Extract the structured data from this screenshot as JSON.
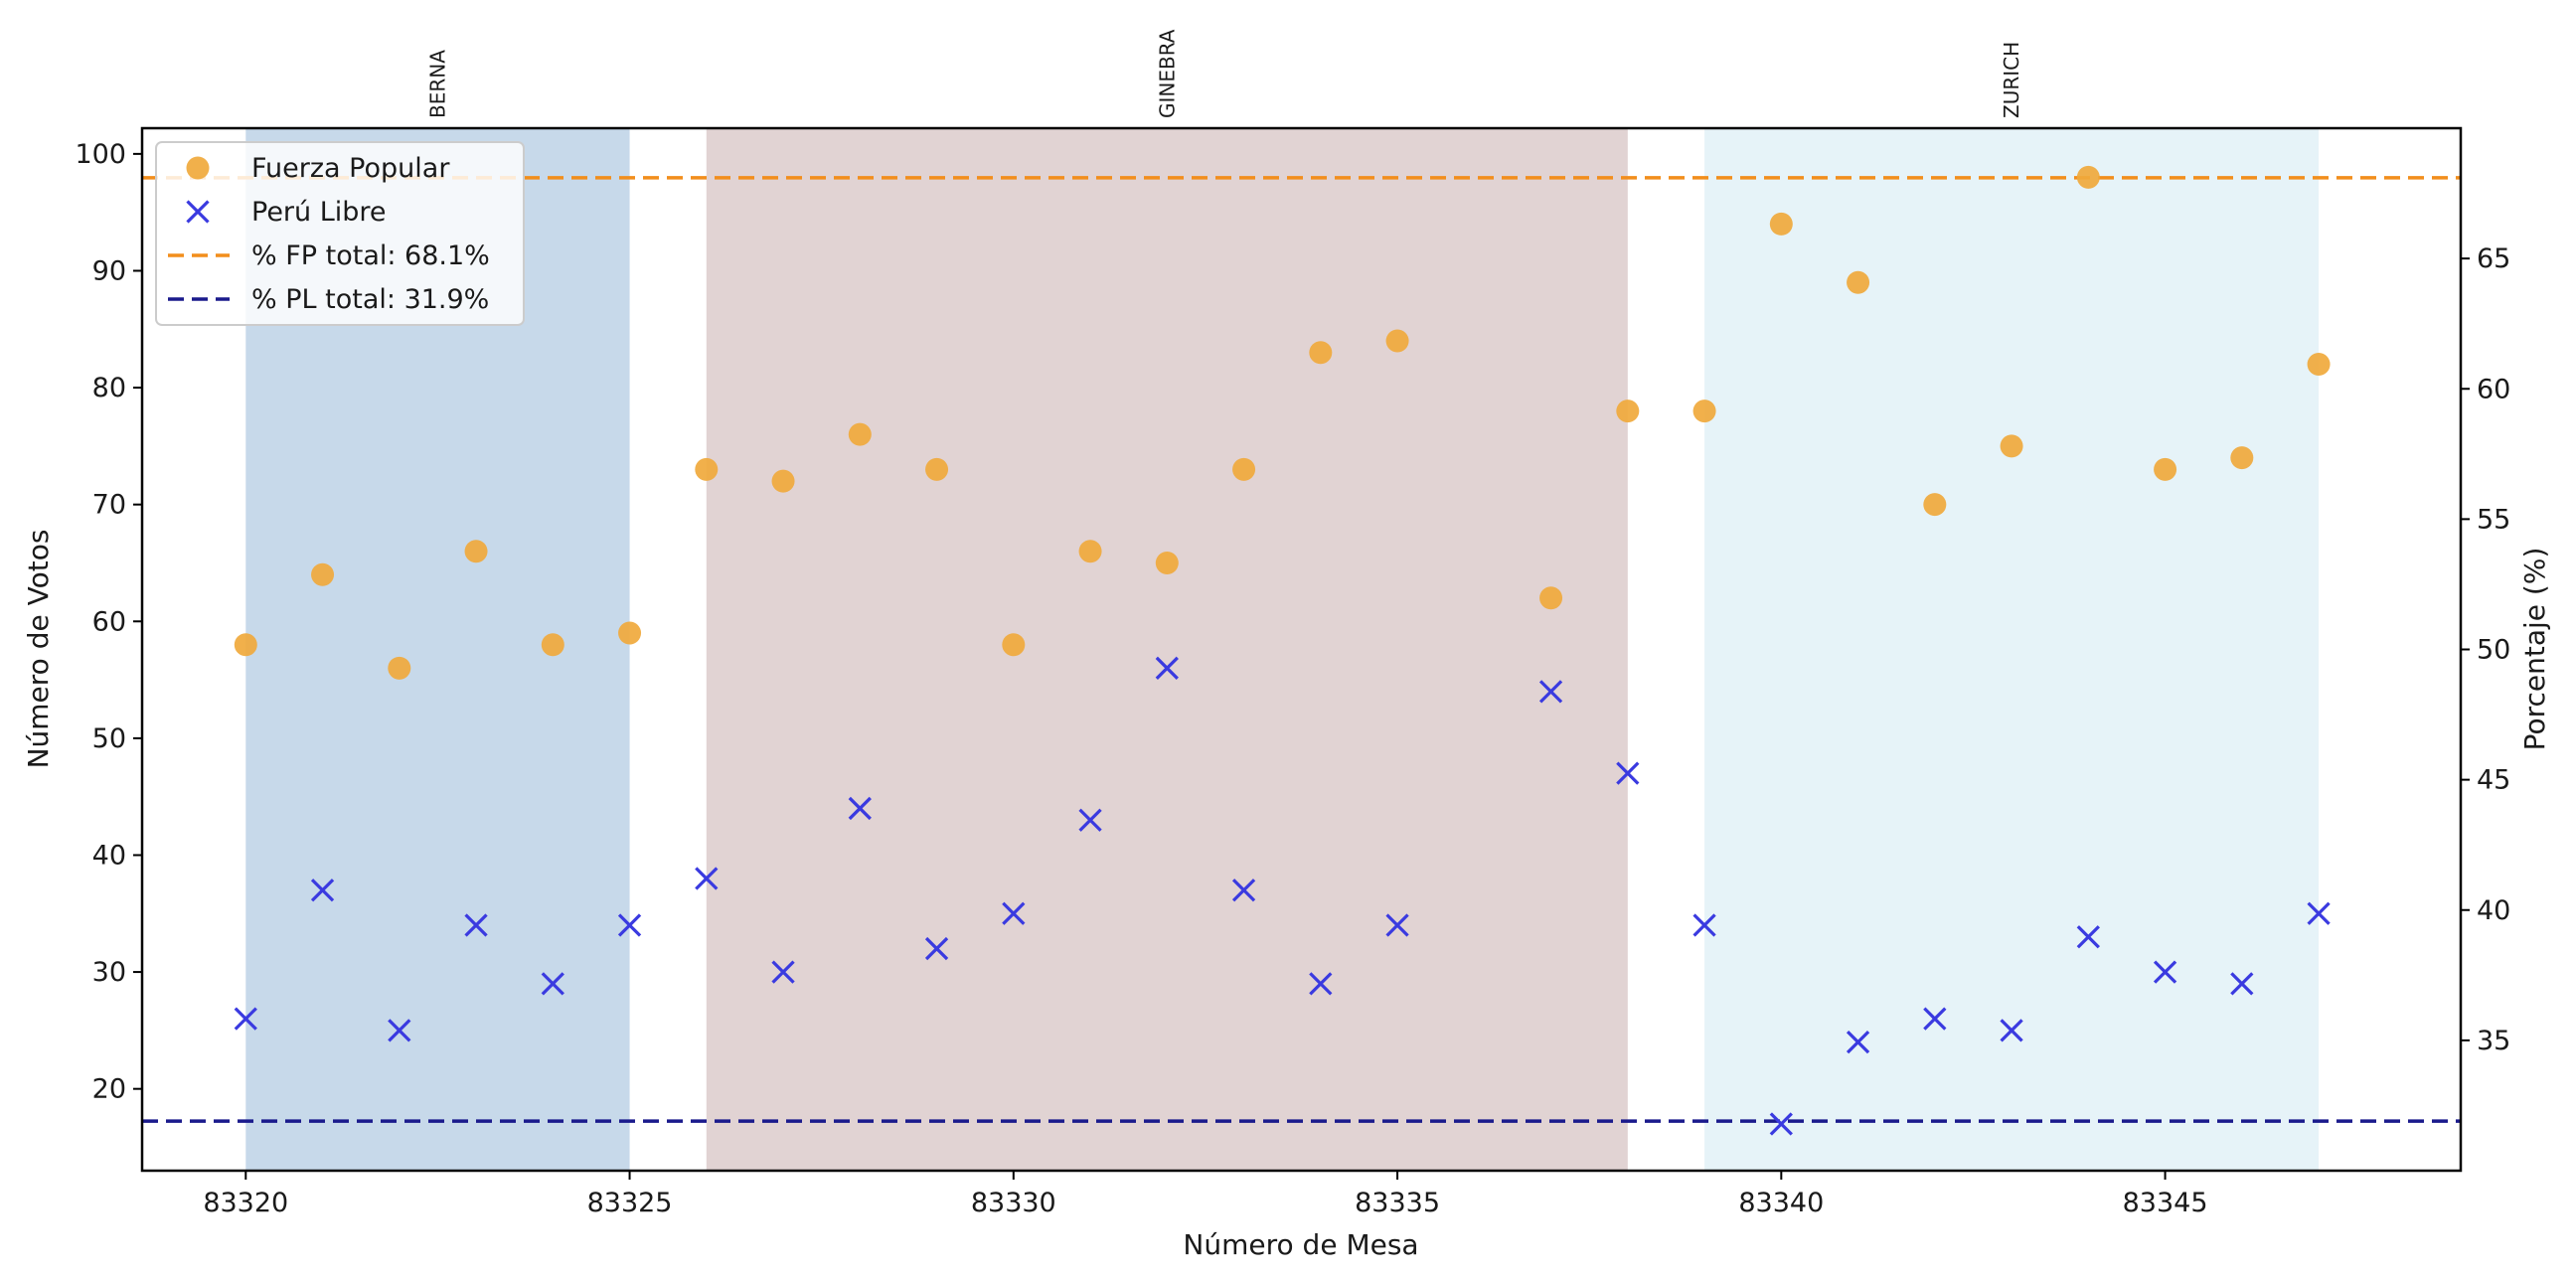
{
  "chart_data": {
    "type": "scatter",
    "xlabel": "Número de Mesa",
    "ylabel": "Número de Votos",
    "ylabel_right": "Porcentaje (%)",
    "xlim": [
      83318.65,
      83348.85
    ],
    "ylim": [
      13.0,
      102.2
    ],
    "ylim_right": [
      30.0,
      70.0
    ],
    "x_ticks": [
      83320,
      83325,
      83330,
      83335,
      83340,
      83345
    ],
    "y_ticks": [
      20,
      30,
      40,
      50,
      60,
      70,
      80,
      90,
      100
    ],
    "y_ticks_right": [
      35,
      40,
      45,
      50,
      55,
      60,
      65
    ],
    "regions": [
      {
        "label": "BERNA",
        "start": 83320,
        "end": 83325,
        "color": "#c7d9ea"
      },
      {
        "label": "GINEBRA",
        "start": 83326,
        "end": 83338,
        "color": "#e1d3d3"
      },
      {
        "label": "ZURICH",
        "start": 83339,
        "end": 83347,
        "color": "#e6f3f8"
      }
    ],
    "x": [
      83320,
      83321,
      83322,
      83323,
      83324,
      83325,
      83326,
      83327,
      83328,
      83329,
      83330,
      83331,
      83332,
      83333,
      83334,
      83335,
      83337,
      83338,
      83339,
      83340,
      83341,
      83342,
      83343,
      83344,
      83345,
      83346,
      83347
    ],
    "series": [
      {
        "name": "Fuerza Popular",
        "marker": "circle",
        "color": "#f0a93c",
        "values": [
          58,
          64,
          56,
          66,
          58,
          59,
          73,
          72,
          76,
          73,
          58,
          66,
          65,
          73,
          83,
          84,
          62,
          78,
          78,
          94,
          89,
          70,
          75,
          98,
          73,
          74,
          82
        ]
      },
      {
        "name": "Perú Libre",
        "marker": "x",
        "color": "#3a3ae0",
        "values": [
          26,
          37,
          25,
          34,
          29,
          34,
          38,
          30,
          44,
          32,
          35,
          43,
          56,
          37,
          29,
          34,
          54,
          47,
          34,
          17,
          24,
          26,
          25,
          33,
          30,
          29,
          35
        ]
      }
    ],
    "reference_lines": [
      {
        "name": "% FP total: 68.1%",
        "value": 68.1,
        "axis": "right",
        "style": "dashed",
        "color": "#f28e1c"
      },
      {
        "name": "% PL total: 31.9%",
        "value": 31.9,
        "axis": "right",
        "style": "dashed",
        "color": "#1a1a8c"
      }
    ],
    "legend": {
      "placement": "upper-left",
      "entries": [
        "Fuerza Popular",
        "Perú Libre",
        "% FP total: 68.1%",
        "% PL total: 31.9%"
      ]
    },
    "grid": false
  }
}
